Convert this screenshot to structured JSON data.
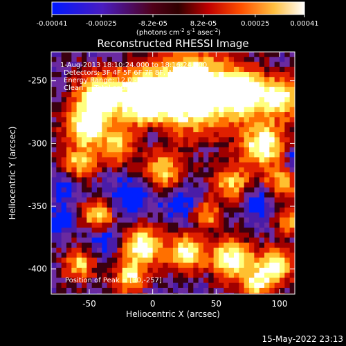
{
  "colorbar": {
    "tick_labels": [
      "-0.00041",
      "-0.00025",
      "-8.2e-05",
      "8.2e-05",
      "0.00025",
      "0.00041"
    ],
    "tick_values": [
      -0.00041,
      -0.00025,
      -8.2e-05,
      8.2e-05,
      0.00025,
      0.00041
    ],
    "range": [
      -0.00041,
      0.00041
    ],
    "unit_main": "(photons cm",
    "unit_sup1": "-2",
    "unit_mid": " s",
    "unit_sup2": "-1",
    "unit_tail": " asec",
    "unit_sup3": "-2",
    "unit_close": ")"
  },
  "chart_data": {
    "type": "heatmap",
    "title": "Reconstructed RHESSI Image",
    "xlabel": "Heliocentric X (arcsec)",
    "ylabel": "Heliocentric Y (arcsec)",
    "xlim": [
      -80,
      112
    ],
    "ylim": [
      -420,
      -227
    ],
    "xticks": [
      -50,
      0,
      50,
      100
    ],
    "yticks": [
      -250,
      -300,
      -350,
      -400
    ],
    "colormap": [
      "#0020ff",
      "#4a1ca8",
      "#6a2aa0",
      "#3a0010",
      "#a00000",
      "#e02000",
      "#ff7000",
      "#ffc030",
      "#ffff80",
      "#ffffff"
    ],
    "annotations": [
      "1-Aug-2013 18:10:24.000 to 18:16:24.000",
      "Detectors: 3F 4F 5F 6F 7F 8F, Att 0",
      "Energy Range: 12.0 - 25.0 keV",
      "Clean     Total counts: 1.01E+04"
    ],
    "peak_label": "Position of Peak = [30,-257]",
    "peak": [
      30,
      -257
    ]
  },
  "timestamp": "15-May-2022 23:13"
}
